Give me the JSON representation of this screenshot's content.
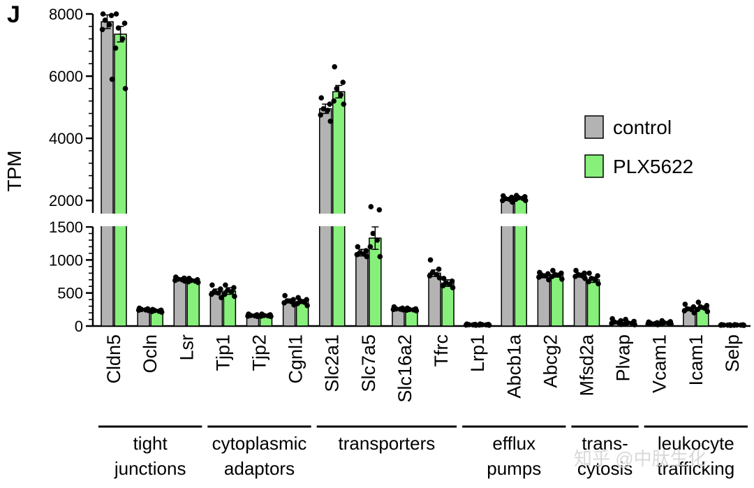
{
  "panel_label": "J",
  "watermark": "知乎 @中肽生化",
  "colors": {
    "control": "#b3b3b3",
    "PLX5622": "#86f07a",
    "axis": "#000000"
  },
  "chart_data": {
    "type": "bar",
    "title": "",
    "xlabel": "",
    "ylabel": "TPM",
    "y_axis": {
      "broken": true,
      "lower_segment": {
        "range": [
          0,
          1500
        ],
        "ticks": [
          0,
          500,
          1000,
          1500
        ],
        "tick_labels": [
          "0",
          "500",
          "1000",
          "1500"
        ]
      },
      "upper_segment": {
        "range": [
          1600,
          8000
        ],
        "ticks": [
          2000,
          4000,
          6000,
          8000
        ],
        "tick_labels": [
          "2000",
          "4000",
          "6000",
          "8000"
        ]
      }
    },
    "legend": {
      "position": "top-right",
      "entries": [
        "control",
        "PLX5622"
      ]
    },
    "categories": [
      "Cldn5",
      "Ocln",
      "Lsr",
      "Tjp1",
      "Tjp2",
      "Cgnl1",
      "Slc2a1",
      "Slc7a5",
      "Slc16a2",
      "Tfrc",
      "Lrp1",
      "Abcb1a",
      "Abcg2",
      "Mfsd2a",
      "Plvap",
      "Vcam1",
      "Icam1",
      "Selp"
    ],
    "series": [
      {
        "name": "control",
        "values": [
          7750,
          250,
          710,
          520,
          160,
          380,
          4950,
          1110,
          260,
          800,
          20,
          2050,
          760,
          770,
          60,
          40,
          260,
          15
        ],
        "errors": [
          220,
          15,
          20,
          40,
          10,
          30,
          150,
          50,
          10,
          50,
          5,
          50,
          30,
          30,
          15,
          8,
          25,
          4
        ],
        "points": [
          [
            8000,
            7950,
            7800,
            7650,
            7500,
            5900
          ],
          [
            270,
            260,
            250,
            245,
            240,
            235
          ],
          [
            740,
            725,
            710,
            700,
            690,
            680
          ],
          [
            620,
            560,
            520,
            500,
            480,
            430
          ],
          [
            180,
            170,
            160,
            155,
            150,
            145
          ],
          [
            460,
            400,
            380,
            370,
            350,
            320
          ],
          [
            5300,
            5100,
            4950,
            4900,
            4750,
            4550
          ],
          [
            1200,
            1140,
            1110,
            1090,
            1080,
            1050
          ],
          [
            290,
            270,
            260,
            255,
            250,
            245
          ],
          [
            1000,
            860,
            810,
            780,
            760,
            730
          ],
          [
            30,
            25,
            20,
            18,
            15,
            12
          ],
          [
            2150,
            2100,
            2060,
            2040,
            2000,
            1950
          ],
          [
            810,
            790,
            770,
            760,
            740,
            700
          ],
          [
            840,
            800,
            780,
            760,
            750,
            720
          ],
          [
            110,
            80,
            60,
            50,
            40,
            25
          ],
          [
            60,
            50,
            40,
            35,
            30,
            20
          ],
          [
            330,
            290,
            260,
            250,
            230,
            200
          ],
          [
            20,
            18,
            15,
            14,
            12,
            10
          ]
        ]
      },
      {
        "name": "PLX5622",
        "values": [
          7350,
          230,
          690,
          530,
          160,
          370,
          5500,
          1330,
          250,
          650,
          20,
          2080,
          770,
          700,
          50,
          50,
          280,
          15
        ],
        "errors": [
          250,
          15,
          20,
          50,
          10,
          30,
          200,
          170,
          10,
          50,
          5,
          40,
          30,
          40,
          15,
          10,
          25,
          4
        ],
        "points": [
          [
            8000,
            7700,
            7550,
            7200,
            6900,
            5600
          ],
          [
            250,
            240,
            235,
            225,
            220,
            210
          ],
          [
            720,
            700,
            690,
            680,
            670,
            660
          ],
          [
            620,
            580,
            540,
            520,
            480,
            450
          ],
          [
            180,
            170,
            160,
            155,
            150,
            145
          ],
          [
            430,
            400,
            380,
            360,
            340,
            310
          ],
          [
            6300,
            5800,
            5600,
            5400,
            5200,
            5100
          ],
          [
            1800,
            1700,
            1400,
            1300,
            1200,
            1050
          ],
          [
            270,
            260,
            250,
            245,
            240,
            230
          ],
          [
            720,
            680,
            650,
            630,
            610,
            580
          ],
          [
            30,
            25,
            20,
            18,
            15,
            12
          ],
          [
            2160,
            2120,
            2090,
            2070,
            2040,
            2000
          ],
          [
            840,
            800,
            780,
            770,
            750,
            710
          ],
          [
            800,
            760,
            720,
            700,
            670,
            640
          ],
          [
            100,
            70,
            50,
            40,
            30,
            20
          ],
          [
            80,
            65,
            50,
            45,
            35,
            30
          ],
          [
            360,
            310,
            290,
            270,
            250,
            220
          ],
          [
            20,
            18,
            15,
            14,
            12,
            10
          ]
        ]
      }
    ],
    "groups": [
      {
        "lines": [
          "tight",
          "junctions"
        ],
        "members": [
          "Cldn5",
          "Ocln",
          "Lsr"
        ]
      },
      {
        "lines": [
          "cytoplasmic",
          "adaptors"
        ],
        "members": [
          "Tjp1",
          "Tjp2",
          "Cgnl1"
        ]
      },
      {
        "lines": [
          "transporters"
        ],
        "members": [
          "Slc2a1",
          "Slc7a5",
          "Slc16a2",
          "Tfrc"
        ]
      },
      {
        "lines": [
          "efflux",
          "pumps"
        ],
        "members": [
          "Lrp1",
          "Abcb1a",
          "Abcg2"
        ]
      },
      {
        "lines": [
          "trans-",
          "cytosis"
        ],
        "members": [
          "Mfsd2a",
          "Plvap"
        ]
      },
      {
        "lines": [
          "leukocyte",
          "trafficking"
        ],
        "members": [
          "Vcam1",
          "Icam1",
          "Selp"
        ]
      }
    ]
  }
}
